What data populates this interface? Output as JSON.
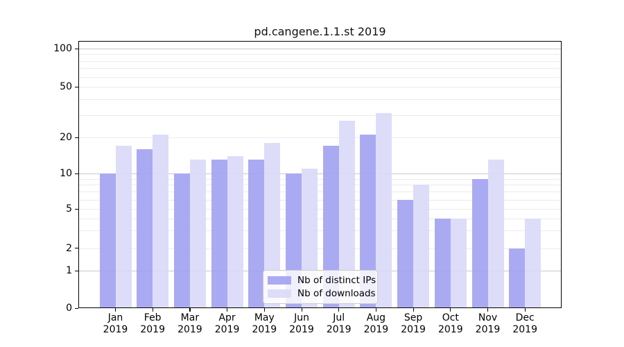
{
  "chart_data": {
    "type": "bar",
    "title": "pd.cangene.1.1.st 2019",
    "categories": [
      "Jan 2019",
      "Feb 2019",
      "Mar 2019",
      "Apr 2019",
      "May 2019",
      "Jun 2019",
      "Jul 2019",
      "Aug 2019",
      "Sep 2019",
      "Oct 2019",
      "Nov 2019",
      "Dec 2019"
    ],
    "series": [
      {
        "name": "Nb of distinct IPs",
        "color": "#a4a4f2",
        "values": [
          10,
          16,
          10,
          13,
          13,
          10,
          17,
          21,
          6,
          4,
          9,
          2
        ]
      },
      {
        "name": "Nb of downloads",
        "color": "#dadaf9",
        "values": [
          17,
          21,
          13,
          14,
          18,
          11,
          27,
          31,
          8,
          4,
          13,
          4
        ]
      }
    ],
    "xlabel": "",
    "ylabel": "",
    "yscale": "symlog (linear 0-1, log above 1)",
    "yticks": [
      0,
      1,
      2,
      5,
      10,
      20,
      50,
      100
    ],
    "ylim": [
      0,
      115
    ],
    "grid": "horizontal major and minor gridlines",
    "legend_position": "inside lower-center"
  }
}
